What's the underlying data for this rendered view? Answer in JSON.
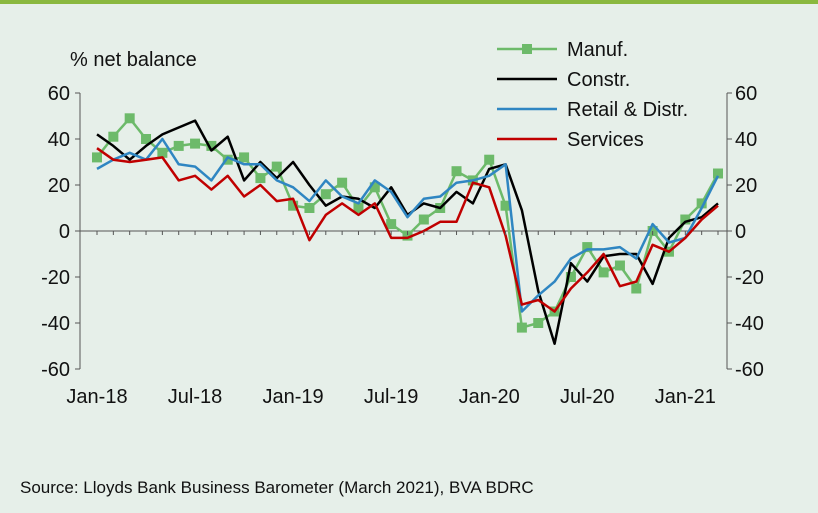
{
  "source_note": "Source: Lloyds Bank Business Barometer (March 2021), BVA BDRC",
  "chart_data": {
    "type": "line",
    "ylabel": "% net balance",
    "ylim": [
      -60,
      60
    ],
    "yticks": [
      -60,
      -40,
      -20,
      0,
      20,
      40,
      60
    ],
    "y2lim": [
      -60,
      60
    ],
    "y2ticks": [
      -60,
      -40,
      -20,
      0,
      20,
      40,
      60
    ],
    "x": [
      "Jan-18",
      "Feb-18",
      "Mar-18",
      "Apr-18",
      "May-18",
      "Jun-18",
      "Jul-18",
      "Aug-18",
      "Sep-18",
      "Oct-18",
      "Nov-18",
      "Dec-18",
      "Jan-19",
      "Feb-19",
      "Mar-19",
      "Apr-19",
      "May-19",
      "Jun-19",
      "Jul-19",
      "Aug-19",
      "Sep-19",
      "Oct-19",
      "Nov-19",
      "Dec-19",
      "Jan-20",
      "Feb-20",
      "Mar-20",
      "Apr-20",
      "May-20",
      "Jun-20",
      "Jul-20",
      "Aug-20",
      "Sep-20",
      "Oct-20",
      "Nov-20",
      "Dec-20",
      "Jan-21",
      "Feb-21",
      "Mar-21"
    ],
    "xticks": [
      "Jan-18",
      "Jul-18",
      "Jan-19",
      "Jul-19",
      "Jan-20",
      "Jul-20",
      "Jan-21"
    ],
    "legend_position": "top-right",
    "grid": false,
    "series": [
      {
        "name": "Manuf.",
        "color": "#6dba6a",
        "marker": "square",
        "values": [
          32,
          41,
          49,
          40,
          34,
          37,
          38,
          37,
          31,
          32,
          23,
          28,
          11,
          10,
          16,
          21,
          10,
          19,
          3,
          -2,
          5,
          10,
          26,
          22,
          31,
          11,
          -42,
          -40,
          -35,
          -20,
          -7,
          -18,
          -15,
          -25,
          0,
          -9,
          5,
          12,
          25
        ]
      },
      {
        "name": "Constr.",
        "color": "#000000",
        "marker": "none",
        "values": [
          42,
          37,
          31,
          37,
          42,
          45,
          48,
          35,
          41,
          22,
          30,
          23,
          30,
          20,
          11,
          15,
          14,
          10,
          19,
          7,
          12,
          10,
          17,
          12,
          27,
          29,
          9,
          -26,
          -49,
          -14,
          -22,
          -11,
          -10,
          -10,
          -23,
          -3,
          4,
          6,
          12
        ]
      },
      {
        "name": "Retail & Distr.",
        "color": "#2f86c2",
        "marker": "none",
        "values": [
          27,
          31,
          34,
          31,
          40,
          29,
          28,
          22,
          32,
          29,
          29,
          22,
          19,
          13,
          22,
          15,
          12,
          22,
          17,
          6,
          14,
          15,
          21,
          22,
          24,
          29,
          -35,
          -28,
          -22,
          -12,
          -8,
          -8,
          -7,
          -12,
          3,
          -5,
          -3,
          10,
          24
        ]
      },
      {
        "name": "Services",
        "color": "#c00000",
        "marker": "none",
        "values": [
          36,
          31,
          30,
          31,
          32,
          22,
          24,
          18,
          24,
          15,
          20,
          13,
          14,
          -4,
          7,
          12,
          7,
          12,
          -3,
          -3,
          0,
          4,
          4,
          21,
          19,
          -2,
          -32,
          -30,
          -35,
          -25,
          -18,
          -10,
          -24,
          -22,
          -6,
          -9,
          -3,
          5,
          11
        ]
      }
    ]
  }
}
